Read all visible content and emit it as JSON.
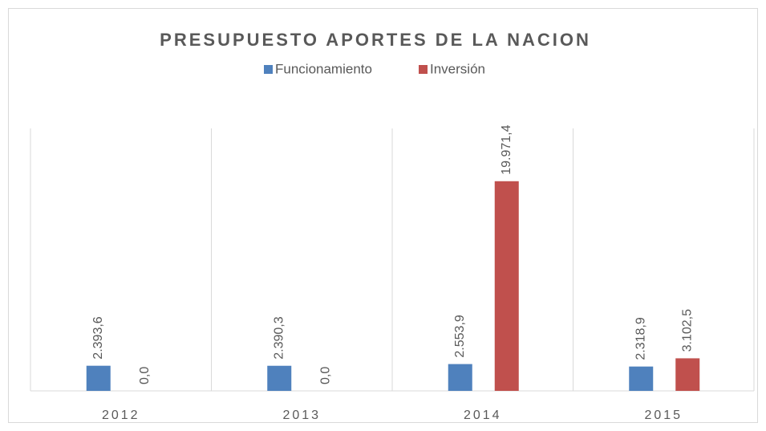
{
  "chart_data": {
    "type": "bar",
    "title": "PRESUPUESTO APORTES DE LA NACION",
    "categories": [
      "2012",
      "2013",
      "2014",
      "2015"
    ],
    "series": [
      {
        "name": "Funcionamiento",
        "color": "#4f81bd",
        "values": [
          2393.6,
          2390.3,
          2553.9,
          2318.9
        ],
        "value_labels": [
          "2.393,6",
          "2.390,3",
          "2.553,9",
          "2.318,9"
        ]
      },
      {
        "name": "Inversión",
        "color": "#c0504d",
        "values": [
          0,
          0,
          19971.4,
          3102.5
        ],
        "value_labels": [
          "0,0",
          "0,0",
          "19.971,4",
          "3.102,5"
        ]
      }
    ],
    "ylim": [
      0,
      25000
    ]
  }
}
